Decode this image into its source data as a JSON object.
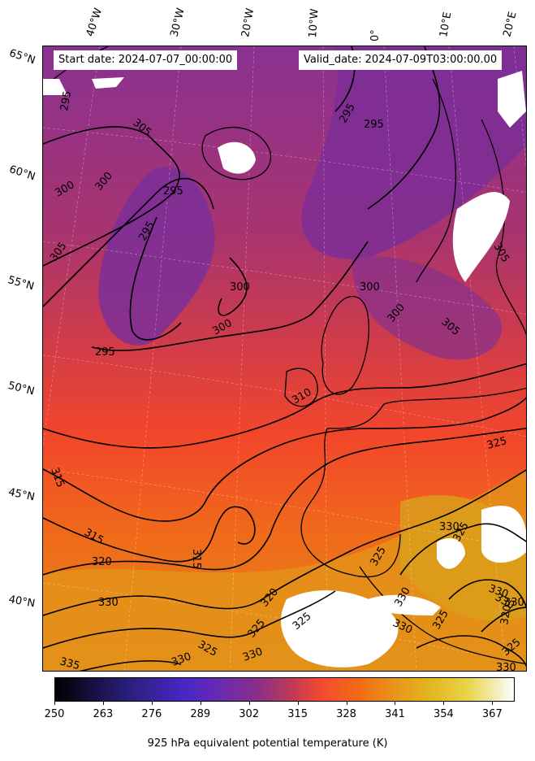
{
  "header": {
    "start_label": "Start date: 2024-07-07_00:00:00",
    "valid_label": "Valid_date: 2024-07-09T03:00:00.00"
  },
  "lat_labels": [
    "65°N",
    "60°N",
    "55°N",
    "50°N",
    "45°N",
    "40°N"
  ],
  "lon_labels": [
    "40°W",
    "30°W",
    "20°W",
    "10°W",
    "0°",
    "10°E",
    "20°E"
  ],
  "contour_labels": [
    "295",
    "305",
    "300",
    "300",
    "305",
    "295",
    "295",
    "295",
    "300",
    "300",
    "295",
    "295",
    "300",
    "300",
    "305",
    "305",
    "310",
    "325",
    "315",
    "315",
    "320",
    "315",
    "330",
    "320",
    "325",
    "325",
    "325",
    "330",
    "335",
    "330",
    "330",
    "330",
    "325",
    "330",
    "330",
    "325",
    "330",
    "325",
    "330",
    "325",
    "330",
    "320"
  ],
  "colorbar": {
    "ticks": [
      "250",
      "263",
      "276",
      "289",
      "302",
      "315",
      "328",
      "341",
      "354",
      "367"
    ],
    "title": "925 hPa equivalent potential temperature (K)",
    "range": [
      250,
      373
    ],
    "colormap": [
      "#000000",
      "#2a1f7a",
      "#4a26c4",
      "#8a2e88",
      "#f44a2e",
      "#e9941a",
      "#e3b622",
      "#ffffff"
    ]
  }
}
